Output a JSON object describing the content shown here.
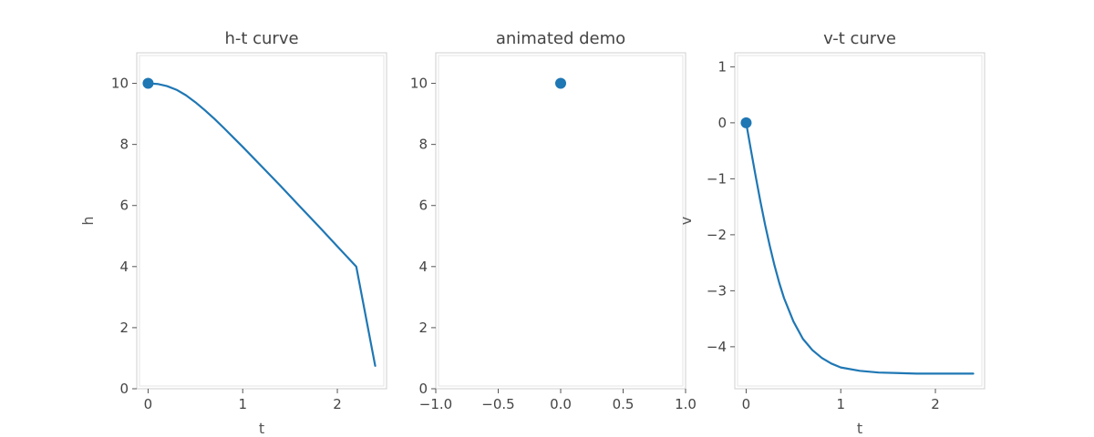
{
  "colors": {
    "series": "#1f77b4"
  },
  "chart_data": [
    {
      "type": "line",
      "title": "h-t curve",
      "xlabel": "t",
      "ylabel": "h",
      "xlim": [
        -0.12,
        2.52
      ],
      "ylim": [
        0,
        11
      ],
      "xticks": [
        {
          "value": 0,
          "label": "0"
        },
        {
          "value": 1,
          "label": "1"
        },
        {
          "value": 2,
          "label": "2"
        }
      ],
      "yticks": [
        {
          "value": 0,
          "label": "0"
        },
        {
          "value": 2,
          "label": "2"
        },
        {
          "value": 4,
          "label": "4"
        },
        {
          "value": 6,
          "label": "6"
        },
        {
          "value": 8,
          "label": "8"
        },
        {
          "value": 10,
          "label": "10"
        }
      ],
      "grid": false,
      "series": [
        {
          "x": [
            0,
            0.1,
            0.2,
            0.3,
            0.4,
            0.5,
            0.6,
            0.7,
            0.8,
            0.9,
            1.0,
            1.2,
            1.4,
            1.6,
            1.8,
            2.0,
            2.2,
            2.4
          ],
          "y": [
            10,
            9.98,
            9.91,
            9.79,
            9.61,
            9.38,
            9.12,
            8.84,
            8.54,
            8.23,
            7.92,
            7.28,
            6.64,
            5.98,
            5.33,
            4.66,
            4.0,
            0.75
          ]
        }
      ],
      "marker": {
        "x": 0,
        "y": 10
      }
    },
    {
      "type": "scatter",
      "title": "animated demo",
      "xlabel": "",
      "ylabel": "",
      "xlim": [
        -1.0,
        1.0
      ],
      "ylim": [
        0,
        11
      ],
      "xticks": [
        {
          "value": -1.0,
          "label": "−1.0"
        },
        {
          "value": -0.5,
          "label": "−0.5"
        },
        {
          "value": 0.0,
          "label": "0.0"
        },
        {
          "value": 0.5,
          "label": "0.5"
        },
        {
          "value": 1.0,
          "label": "1.0"
        }
      ],
      "yticks": [
        {
          "value": 0,
          "label": "0"
        },
        {
          "value": 2,
          "label": "2"
        },
        {
          "value": 4,
          "label": "4"
        },
        {
          "value": 6,
          "label": "6"
        },
        {
          "value": 8,
          "label": "8"
        },
        {
          "value": 10,
          "label": "10"
        }
      ],
      "grid": false,
      "series": [],
      "marker": {
        "x": 0,
        "y": 10
      }
    },
    {
      "type": "line",
      "title": "v-t curve",
      "xlabel": "t",
      "ylabel": "v",
      "xlim": [
        -0.12,
        2.52
      ],
      "ylim": [
        -4.75,
        1.25
      ],
      "xticks": [
        {
          "value": 0,
          "label": "0"
        },
        {
          "value": 1,
          "label": "1"
        },
        {
          "value": 2,
          "label": "2"
        }
      ],
      "yticks": [
        {
          "value": -4,
          "label": "−4"
        },
        {
          "value": -3,
          "label": "−3"
        },
        {
          "value": -2,
          "label": "−2"
        },
        {
          "value": -1,
          "label": "−1"
        },
        {
          "value": 0,
          "label": "0"
        },
        {
          "value": 1,
          "label": "1"
        }
      ],
      "grid": false,
      "series": [
        {
          "x": [
            0,
            0.05,
            0.1,
            0.15,
            0.2,
            0.25,
            0.3,
            0.35,
            0.4,
            0.5,
            0.6,
            0.7,
            0.8,
            0.9,
            1.0,
            1.2,
            1.4,
            1.6,
            1.8,
            2.0,
            2.2,
            2.4
          ],
          "y": [
            0,
            -0.48,
            -0.95,
            -1.4,
            -1.82,
            -2.2,
            -2.55,
            -2.86,
            -3.13,
            -3.55,
            -3.86,
            -4.06,
            -4.2,
            -4.3,
            -4.37,
            -4.43,
            -4.46,
            -4.47,
            -4.48,
            -4.48,
            -4.48,
            -4.48
          ]
        }
      ],
      "marker": {
        "x": 0,
        "y": 0
      }
    }
  ]
}
